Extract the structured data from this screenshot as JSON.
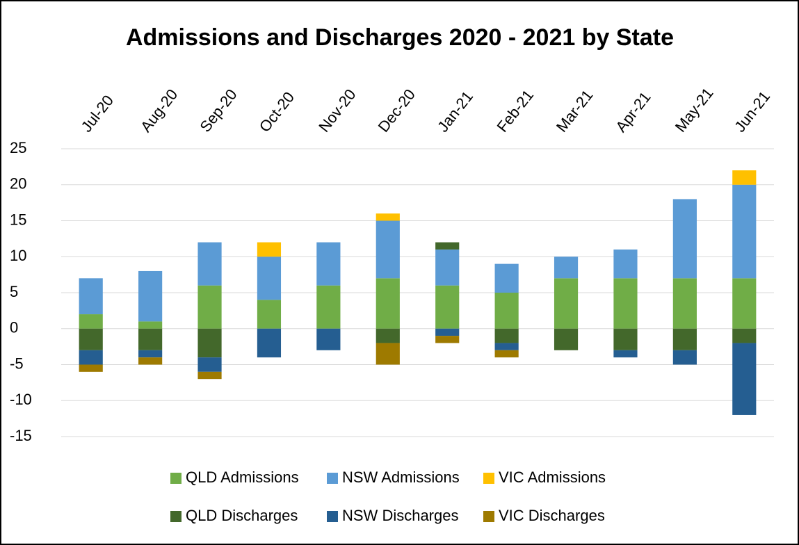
{
  "chart_data": {
    "type": "stacked_bar",
    "title": "Admissions and Discharges 2020 - 2021 by State",
    "categories": [
      "Jul-20",
      "Aug-20",
      "Sep-20",
      "Oct-20",
      "Nov-20",
      "Dec-20",
      "Jan-21",
      "Feb-21",
      "Mar-21",
      "Apr-21",
      "May-21",
      "Jun-21"
    ],
    "series": [
      {
        "name": "QLD Admissions",
        "color": "#70ad47",
        "values": [
          2,
          1,
          6,
          4,
          6,
          7,
          6,
          5,
          7,
          7,
          7,
          7
        ]
      },
      {
        "name": "NSW Admissions",
        "color": "#5b9bd5",
        "values": [
          5,
          7,
          6,
          6,
          6,
          8,
          5,
          4,
          3,
          4,
          11,
          13
        ]
      },
      {
        "name": "VIC Admissions",
        "color": "#ffc000",
        "values": [
          0,
          0,
          0,
          2,
          0,
          1,
          0,
          0,
          0,
          0,
          0,
          2
        ]
      },
      {
        "name": "QLD Discharges",
        "color": "#43682b",
        "values": [
          -3,
          -3,
          -4,
          0,
          0,
          -2,
          1,
          -2,
          -3,
          -3,
          -3,
          -2
        ]
      },
      {
        "name": "NSW Discharges",
        "color": "#255e91",
        "values": [
          -2,
          -1,
          -2,
          -4,
          -3,
          0,
          -1,
          -1,
          0,
          -1,
          -2,
          -10
        ]
      },
      {
        "name": "VIC Discharges",
        "color": "#9e7a00",
        "values": [
          -1,
          -1,
          -1,
          0,
          0,
          -3,
          -1,
          -1,
          0,
          0,
          0,
          0
        ]
      }
    ],
    "ylim": [
      -15,
      25
    ],
    "yticks": [
      -15,
      -10,
      -5,
      0,
      5,
      10,
      15,
      20,
      25
    ],
    "grid": true,
    "legend": "bottom"
  }
}
